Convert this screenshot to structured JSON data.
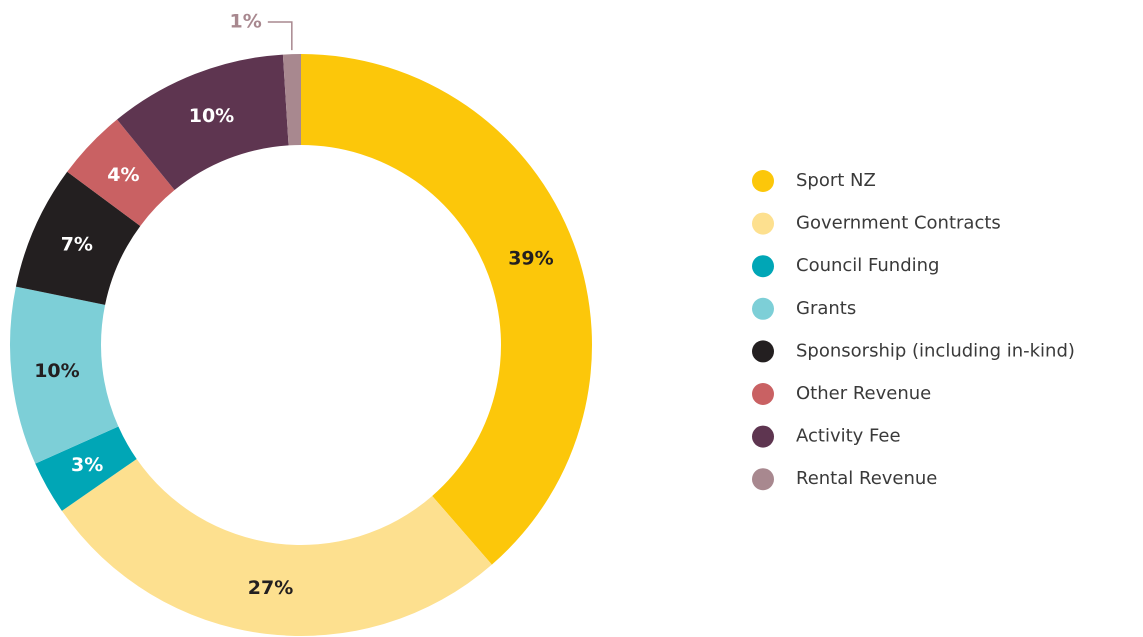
{
  "chart_data": {
    "type": "donut",
    "categories": [
      "Sport NZ",
      "Government Contracts",
      "Council Funding",
      "Grants",
      "Sponsorship (including in-kind)",
      "Other Revenue",
      "Activity Fee",
      "Rental Revenue"
    ],
    "values": [
      39,
      27,
      3,
      10,
      7,
      4,
      10,
      1
    ],
    "value_labels": [
      "39%",
      "27%",
      "3%",
      "10%",
      "7%",
      "4%",
      "10%",
      "1%"
    ],
    "colors": [
      "#fcc70a",
      "#fde08f",
      "#00a6b6",
      "#7dcfd7",
      "#231f20",
      "#c96163",
      "#5e3550",
      "#a8888f"
    ],
    "legend": "right"
  }
}
